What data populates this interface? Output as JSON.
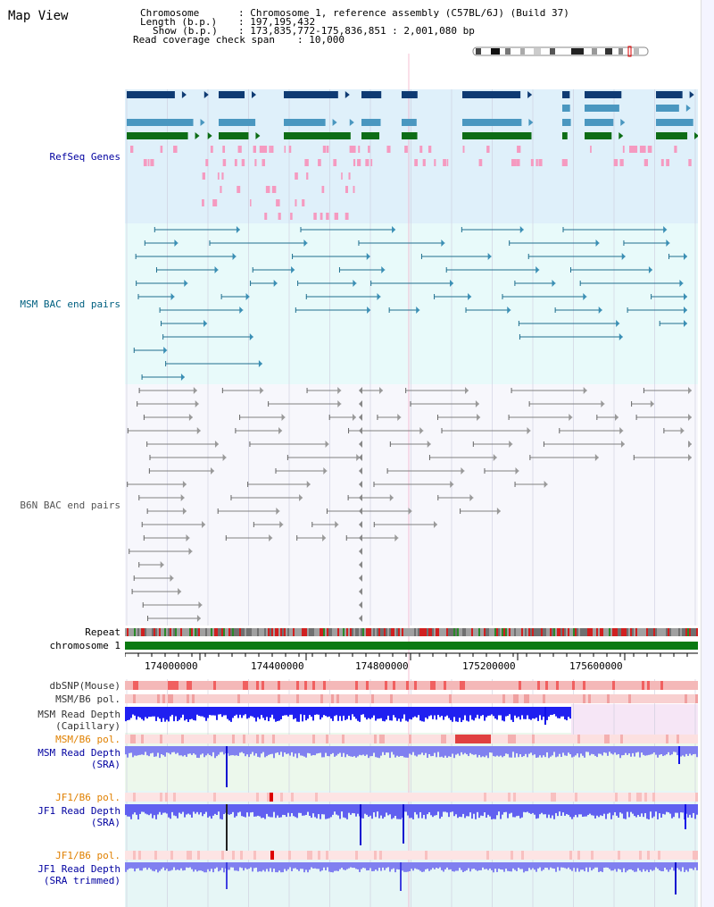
{
  "header": {
    "view_title": "Map View",
    "chromosome_label": "Chromosome",
    "chromosome_value": ": Chromosome 1, reference assembly (C57BL/6J) (Build 37)",
    "length_label": "Length (b.p.)",
    "length_value": ": 197,195,432",
    "show_label": "Show (b.p.)",
    "show_value": ": 173,835,772-175,836,851 : 2,001,080 bp",
    "coverage_label": "Read coverage check span",
    "coverage_value": ": 10,000"
  },
  "tracks": {
    "refseq": "RefSeq Genes",
    "msm_bac": "MSM BAC end pairs",
    "b6n_bac": "B6N BAC end pairs",
    "repeat": "Repeat",
    "chromosome": "chromosome 1",
    "dbsnp": "dbSNP(Mouse)",
    "msm_b6_pol": "MSM/B6 pol.",
    "msm_read_depth_cap_1": "MSM Read Depth",
    "msm_read_depth_cap_2": "(Capillary)",
    "msm_b6_pol_2": "MSM/B6 pol.",
    "msm_read_depth_sra_1": "MSM Read Depth",
    "msm_read_depth_sra_2": "(SRA)",
    "jf1_b6_pol": "JF1/B6 pol.",
    "jf1_read_depth_sra_1": "JF1 Read Depth",
    "jf1_read_depth_sra_2": "(SRA)",
    "jf1_b6_pol_2": "JF1/B6 pol.",
    "jf1_read_depth_trim_1": "JF1 Read Depth",
    "jf1_read_depth_trim_2": "(SRA trimmed)"
  },
  "ruler": {
    "ticks": [
      "174000000",
      "174400000",
      "174800000",
      "175200000",
      "175600000"
    ]
  },
  "colors": {
    "refseq_bg": "#dff0fa",
    "bac_bg": "#e8fafa",
    "msm_bac_line": "#1f6f8f",
    "b6n_bac_line": "#808080",
    "refseq_dark": "#0f3b73",
    "refseq_mid": "#4a97c0",
    "refseq_green": "#0d6d16",
    "refseq_pink": "#f59ac0",
    "chromosome_bar": "#0a7a12",
    "depth_blue": "#1010e8",
    "depth_light": "#8080f0",
    "track_label_blue": "#0000a0",
    "track_label_orange": "#e08000",
    "track_label_teal": "#006080"
  }
}
